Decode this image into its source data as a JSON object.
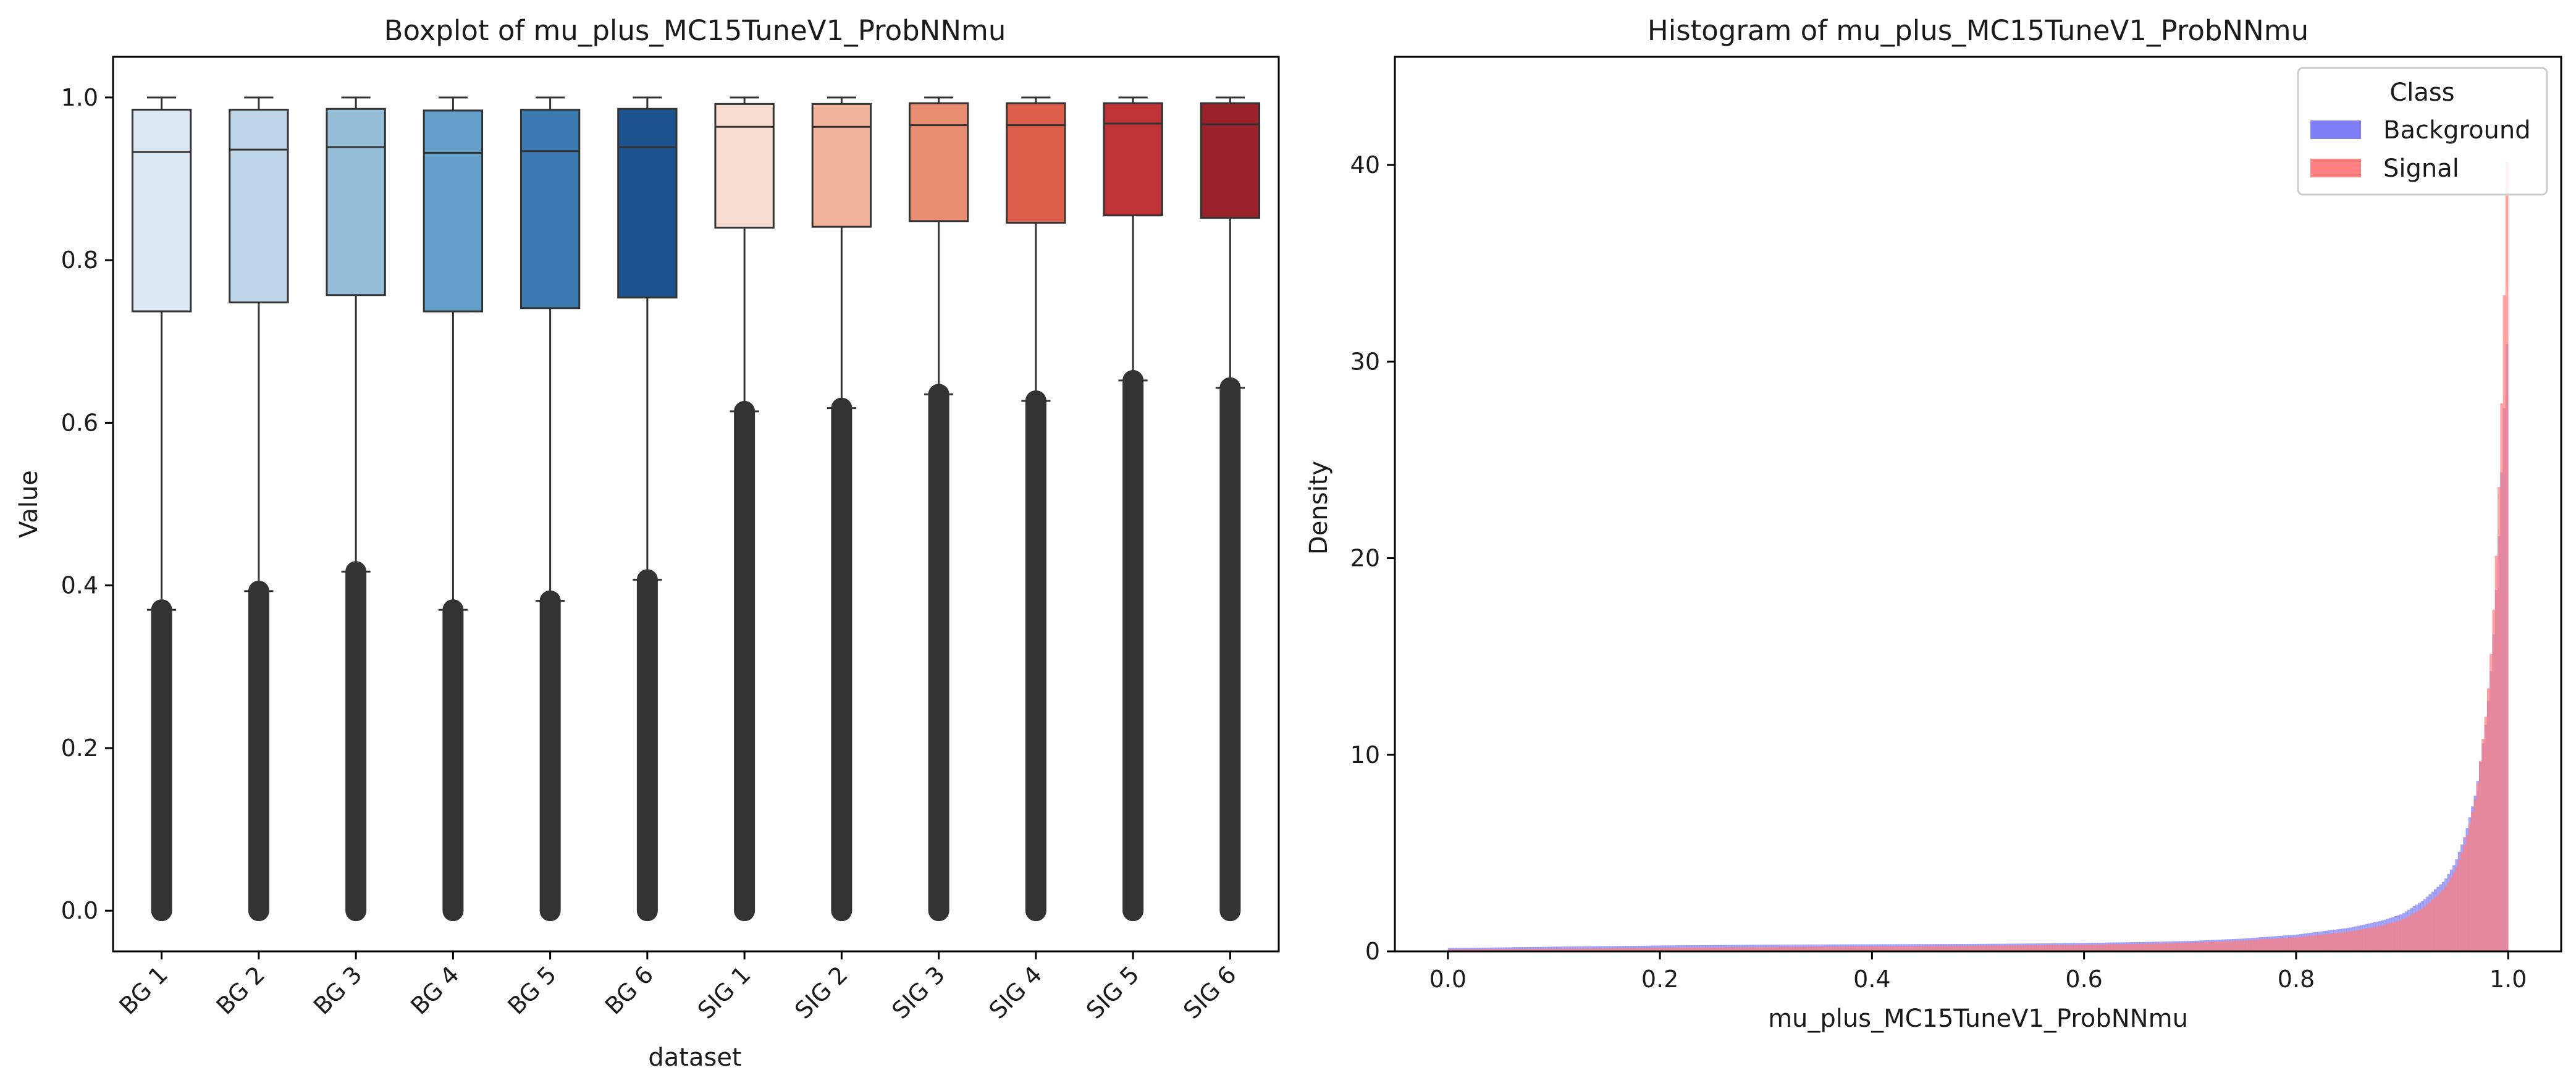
{
  "chart_data": [
    {
      "type": "boxplot",
      "title": "Boxplot of mu_plus_MC15TuneV1_ProbNNmu",
      "xlabel": "dataset",
      "ylabel": "Value",
      "ylim": [
        -0.05,
        1.05
      ],
      "yticks": [
        "0.0",
        "0.2",
        "0.4",
        "0.6",
        "0.8",
        "1.0"
      ],
      "categories": [
        "BG 1",
        "BG 2",
        "BG 3",
        "BG 4",
        "BG 5",
        "BG 6",
        "SIG 1",
        "SIG 2",
        "SIG 3",
        "SIG 4",
        "SIG 5",
        "SIG 6"
      ],
      "boxes": [
        {
          "label": "BG 1",
          "q1": 0.737,
          "median": 0.933,
          "q3": 0.985,
          "whisker_low": 0.37,
          "whisker_high": 1.0,
          "outlier_low": 0.0,
          "outlier_high": 0.37,
          "color": "#dce8f4"
        },
        {
          "label": "BG 2",
          "q1": 0.748,
          "median": 0.936,
          "q3": 0.985,
          "whisker_low": 0.393,
          "whisker_high": 1.0,
          "outlier_low": 0.0,
          "outlier_high": 0.393,
          "color": "#bfd6e9"
        },
        {
          "label": "BG 3",
          "q1": 0.757,
          "median": 0.939,
          "q3": 0.986,
          "whisker_low": 0.417,
          "whisker_high": 1.0,
          "outlier_low": 0.0,
          "outlier_high": 0.417,
          "color": "#94bdd8"
        },
        {
          "label": "BG 4",
          "q1": 0.737,
          "median": 0.932,
          "q3": 0.984,
          "whisker_low": 0.37,
          "whisker_high": 1.0,
          "outlier_low": 0.0,
          "outlier_high": 0.37,
          "color": "#649fc9"
        },
        {
          "label": "BG 5",
          "q1": 0.741,
          "median": 0.934,
          "q3": 0.985,
          "whisker_low": 0.381,
          "whisker_high": 1.0,
          "outlier_low": 0.0,
          "outlier_high": 0.381,
          "color": "#3b7bb1"
        },
        {
          "label": "BG 6",
          "q1": 0.754,
          "median": 0.939,
          "q3": 0.986,
          "whisker_low": 0.407,
          "whisker_high": 1.0,
          "outlier_low": 0.0,
          "outlier_high": 0.407,
          "color": "#1d548f"
        },
        {
          "label": "SIG 1",
          "q1": 0.84,
          "median": 0.964,
          "q3": 0.992,
          "whisker_low": 0.614,
          "whisker_high": 1.0,
          "outlier_low": 0.0,
          "outlier_high": 0.614,
          "color": "#f8dccf"
        },
        {
          "label": "SIG 2",
          "q1": 0.841,
          "median": 0.964,
          "q3": 0.992,
          "whisker_low": 0.618,
          "whisker_high": 1.0,
          "outlier_low": 0.0,
          "outlier_high": 0.618,
          "color": "#f1b39c"
        },
        {
          "label": "SIG 3",
          "q1": 0.848,
          "median": 0.966,
          "q3": 0.993,
          "whisker_low": 0.635,
          "whisker_high": 1.0,
          "outlier_low": 0.0,
          "outlier_high": 0.635,
          "color": "#e88d70"
        },
        {
          "label": "SIG 4",
          "q1": 0.846,
          "median": 0.966,
          "q3": 0.993,
          "whisker_low": 0.627,
          "whisker_high": 1.0,
          "outlier_low": 0.0,
          "outlier_high": 0.627,
          "color": "#de5f4b"
        },
        {
          "label": "SIG 5",
          "q1": 0.855,
          "median": 0.968,
          "q3": 0.993,
          "whisker_low": 0.652,
          "whisker_high": 1.0,
          "outlier_low": 0.0,
          "outlier_high": 0.652,
          "color": "#bf3337"
        },
        {
          "label": "SIG 6",
          "q1": 0.852,
          "median": 0.967,
          "q3": 0.993,
          "whisker_low": 0.643,
          "whisker_high": 1.0,
          "outlier_low": 0.0,
          "outlier_high": 0.643,
          "color": "#99212a"
        }
      ],
      "box_edge_color": "#333333",
      "outlier_color": "#333333"
    },
    {
      "type": "histogram",
      "title": "Histogram of mu_plus_MC15TuneV1_ProbNNmu",
      "xlabel": "mu_plus_MC15TuneV1_ProbNNmu",
      "ylabel": "Density",
      "xlim": [
        -0.05,
        1.05
      ],
      "ylim": [
        0,
        45.5
      ],
      "xticks": [
        "0.0",
        "0.2",
        "0.4",
        "0.6",
        "0.8",
        "1.0"
      ],
      "yticks": [
        "0",
        "10",
        "20",
        "30",
        "40"
      ],
      "legend": {
        "title": "Class",
        "position": "top-right"
      },
      "series": [
        {
          "name": "Background",
          "color": "#7f7ff5",
          "density_profile": [
            [
              0.0,
              0.17
            ],
            [
              0.05,
              0.2
            ],
            [
              0.1,
              0.24
            ],
            [
              0.15,
              0.27
            ],
            [
              0.2,
              0.3
            ],
            [
              0.25,
              0.32
            ],
            [
              0.3,
              0.34
            ],
            [
              0.35,
              0.35
            ],
            [
              0.4,
              0.36
            ],
            [
              0.45,
              0.37
            ],
            [
              0.5,
              0.38
            ],
            [
              0.55,
              0.4
            ],
            [
              0.6,
              0.43
            ],
            [
              0.65,
              0.47
            ],
            [
              0.7,
              0.53
            ],
            [
              0.75,
              0.65
            ],
            [
              0.8,
              0.85
            ],
            [
              0.85,
              1.2
            ],
            [
              0.88,
              1.55
            ],
            [
              0.9,
              1.9
            ],
            [
              0.92,
              2.6
            ],
            [
              0.94,
              3.6
            ],
            [
              0.95,
              4.5
            ],
            [
              0.96,
              6.0
            ],
            [
              0.97,
              8.2
            ],
            [
              0.98,
              12.0
            ],
            [
              0.985,
              15.0
            ],
            [
              0.99,
              19.5
            ],
            [
              0.995,
              26.0
            ],
            [
              1.0,
              32.5
            ]
          ]
        },
        {
          "name": "Signal",
          "color": "#ff8080",
          "density_profile": [
            [
              0.0,
              0.1
            ],
            [
              0.05,
              0.12
            ],
            [
              0.1,
              0.14
            ],
            [
              0.15,
              0.16
            ],
            [
              0.2,
              0.18
            ],
            [
              0.25,
              0.2
            ],
            [
              0.3,
              0.22
            ],
            [
              0.35,
              0.24
            ],
            [
              0.4,
              0.25
            ],
            [
              0.45,
              0.27
            ],
            [
              0.5,
              0.29
            ],
            [
              0.55,
              0.31
            ],
            [
              0.6,
              0.34
            ],
            [
              0.65,
              0.38
            ],
            [
              0.7,
              0.44
            ],
            [
              0.75,
              0.55
            ],
            [
              0.8,
              0.72
            ],
            [
              0.85,
              1.0
            ],
            [
              0.88,
              1.3
            ],
            [
              0.9,
              1.6
            ],
            [
              0.92,
              2.2
            ],
            [
              0.94,
              3.2
            ],
            [
              0.95,
              4.1
            ],
            [
              0.96,
              5.6
            ],
            [
              0.97,
              8.0
            ],
            [
              0.98,
              12.5
            ],
            [
              0.985,
              16.0
            ],
            [
              0.99,
              21.5
            ],
            [
              0.995,
              30.0
            ],
            [
              1.0,
              43.5
            ]
          ]
        }
      ]
    }
  ]
}
